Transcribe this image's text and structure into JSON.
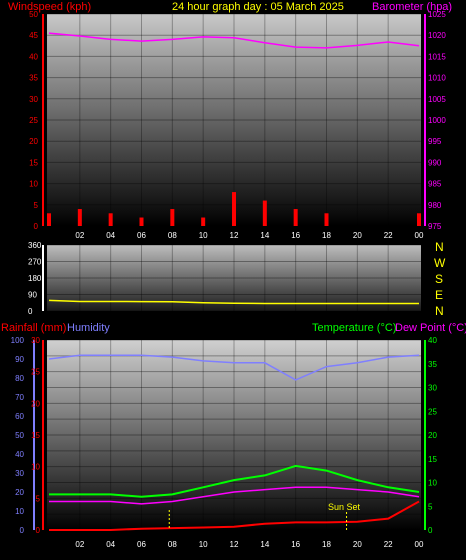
{
  "colors": {
    "background": "#000000",
    "title": "#ffff00",
    "wind": "#ff0000",
    "barometer": "#ff00ff",
    "gust": "#00ff00",
    "direction": "#ffff00",
    "compass": "#ffff00",
    "rain": "#ff0000",
    "humidity": "#7f7fff",
    "temperature": "#00ff00",
    "dewpoint": "#ff00ff",
    "sunset": "#ffff00",
    "white_tick": "#ffffff"
  },
  "title": "24 hour graph day : 05 March 2025",
  "x_tick_labels": [
    "02",
    "04",
    "06",
    "08",
    "10",
    "12",
    "14",
    "16",
    "18",
    "20",
    "22",
    "00"
  ],
  "panel1": {
    "left_label": "Windspeed (kph)",
    "right_label": "Barometer (hpa)",
    "left_ticks": [
      "0",
      "5",
      "10",
      "15",
      "20",
      "25",
      "30",
      "35",
      "40",
      "45",
      "50"
    ],
    "right_ticks": [
      "975",
      "980",
      "985",
      "990",
      "995",
      "1000",
      "1005",
      "1010",
      "1015",
      "1020",
      "1025"
    ]
  },
  "panel2": {
    "left_ticks": [
      "0",
      "90",
      "180",
      "270",
      "360"
    ],
    "compass_letters": [
      "N",
      "W",
      "S",
      "E",
      "N"
    ]
  },
  "panel3": {
    "rain_label": "Rainfall (mm)",
    "humidity_label": "Humidity",
    "temp_label": "Temperature (°C)",
    "dew_label": "Dew Point (°C)",
    "left_ticks_humidity": [
      "0",
      "10",
      "20",
      "30",
      "40",
      "50",
      "60",
      "70",
      "80",
      "90",
      "100"
    ],
    "left_ticks_rain": [
      "0",
      "5",
      "10",
      "15",
      "20",
      "25",
      "30"
    ],
    "right_ticks": [
      "0",
      "5",
      "10",
      "15",
      "20",
      "25",
      "30",
      "35",
      "40"
    ],
    "sunset_label": "Sun Set"
  },
  "chart_data": [
    {
      "type": "line",
      "x_unit": "hours",
      "x": [
        0,
        2,
        4,
        6,
        8,
        10,
        12,
        14,
        16,
        18,
        20,
        22,
        24
      ],
      "series": [
        {
          "name": "Windspeed (kph)",
          "axis": "left",
          "values": [
            3,
            4,
            3,
            2,
            4,
            2,
            8,
            6,
            4,
            3,
            0,
            0,
            3
          ]
        },
        {
          "name": "Barometer (hpa)",
          "axis": "right",
          "values": [
            1020.5,
            1019.8,
            1019.0,
            1018.6,
            1019.0,
            1019.6,
            1019.4,
            1018.2,
            1017.2,
            1017.0,
            1017.6,
            1018.4,
            1017.5
          ]
        }
      ],
      "ylim_left": [
        0,
        50
      ],
      "ylim_right": [
        975,
        1025
      ],
      "grid": true
    },
    {
      "type": "line",
      "x_unit": "hours",
      "x": [
        0,
        2,
        4,
        6,
        8,
        10,
        12,
        14,
        16,
        18,
        20,
        22,
        24
      ],
      "series": [
        {
          "name": "Wind direction",
          "values": [
            58,
            52,
            52,
            51,
            50,
            45,
            42,
            41,
            41,
            41,
            41,
            41,
            41
          ]
        }
      ],
      "ylim": [
        0,
        360
      ],
      "grid": true
    },
    {
      "type": "line",
      "x_unit": "hours",
      "x": [
        0,
        2,
        4,
        6,
        8,
        10,
        12,
        14,
        16,
        18,
        20,
        22,
        24
      ],
      "series": [
        {
          "name": "Humidity",
          "axis": "left",
          "values": [
            90,
            92,
            92,
            92,
            91,
            89,
            88,
            88,
            79,
            86,
            88,
            91,
            92
          ]
        },
        {
          "name": "Temperature (°C)",
          "axis": "right",
          "values": [
            7.5,
            7.5,
            7.5,
            7.0,
            7.5,
            9.0,
            10.5,
            11.5,
            13.5,
            12.5,
            10.5,
            9.0,
            8.0
          ]
        },
        {
          "name": "Dew Point (°C)",
          "axis": "right",
          "values": [
            6.0,
            6.0,
            6.0,
            5.5,
            6.0,
            7.0,
            8.0,
            8.5,
            9.0,
            9.0,
            8.5,
            8.0,
            7.0
          ]
        },
        {
          "name": "Rainfall (mm)",
          "axis": "left_rain",
          "values": [
            0,
            0,
            0,
            0.2,
            0.3,
            0.4,
            0.5,
            1.0,
            1.2,
            1.2,
            1.3,
            1.8,
            4.5
          ]
        }
      ],
      "ylim_left": [
        0,
        100
      ],
      "ylim_rain": [
        0,
        30
      ],
      "ylim_right": [
        0,
        40
      ],
      "annotations": [
        "Sun Set"
      ],
      "grid": true
    }
  ]
}
